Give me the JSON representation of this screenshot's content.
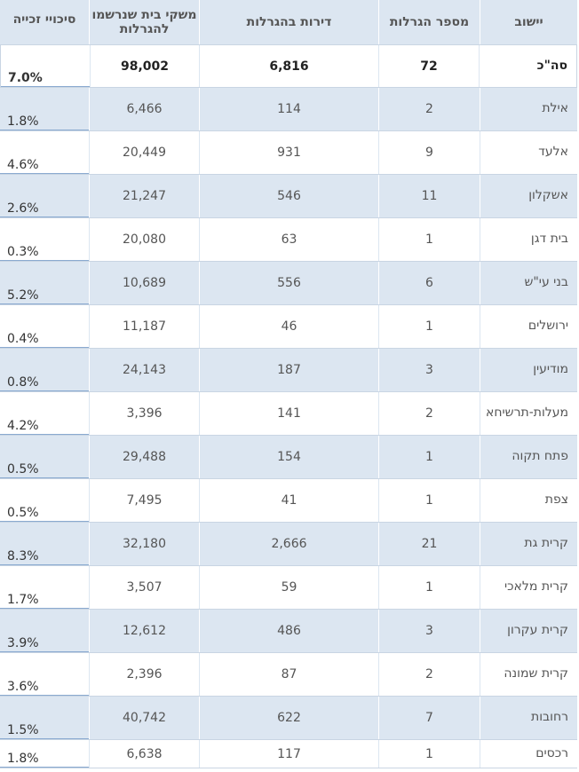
{
  "chart_data": {
    "type": "table",
    "columns": [
      "יישוב",
      "מספר הגרלות",
      "דירות בהגרלות",
      "משקי בית שנרשמו להגרלות",
      "סיכויי זכייה"
    ],
    "total": {
      "city": "סה\"כ",
      "lotteries": "72",
      "apartments": "6,816",
      "households": "98,002",
      "chance": "7.0%"
    },
    "rows": [
      {
        "city": "אילת",
        "lotteries": "2",
        "apartments": "114",
        "households": "6,466",
        "chance": "1.8%"
      },
      {
        "city": "אלעד",
        "lotteries": "9",
        "apartments": "931",
        "households": "20,449",
        "chance": "4.6%"
      },
      {
        "city": "אשקלון",
        "lotteries": "11",
        "apartments": "546",
        "households": "21,247",
        "chance": "2.6%"
      },
      {
        "city": "בית דגן",
        "lotteries": "1",
        "apartments": "63",
        "households": "20,080",
        "chance": "0.3%"
      },
      {
        "city": "בני עי\"ש",
        "lotteries": "6",
        "apartments": "556",
        "households": "10,689",
        "chance": "5.2%"
      },
      {
        "city": "ירושלים",
        "lotteries": "1",
        "apartments": "46",
        "households": "11,187",
        "chance": "0.4%"
      },
      {
        "city": "מודיעין",
        "lotteries": "3",
        "apartments": "187",
        "households": "24,143",
        "chance": "0.8%"
      },
      {
        "city": "מעלות-תרשיחא",
        "lotteries": "2",
        "apartments": "141",
        "households": "3,396",
        "chance": "4.2%"
      },
      {
        "city": "פתח תקוה",
        "lotteries": "1",
        "apartments": "154",
        "households": "29,488",
        "chance": "0.5%"
      },
      {
        "city": "צפת",
        "lotteries": "1",
        "apartments": "41",
        "households": "7,495",
        "chance": "0.5%"
      },
      {
        "city": "קרית גת",
        "lotteries": "21",
        "apartments": "2,666",
        "households": "32,180",
        "chance": "8.3%"
      },
      {
        "city": "קרית מלאכי",
        "lotteries": "1",
        "apartments": "59",
        "households": "3,507",
        "chance": "1.7%"
      },
      {
        "city": "קרית עקרון",
        "lotteries": "3",
        "apartments": "486",
        "households": "12,612",
        "chance": "3.9%"
      },
      {
        "city": "קרית שמונה",
        "lotteries": "2",
        "apartments": "87",
        "households": "2,396",
        "chance": "3.6%"
      },
      {
        "city": "רחובות",
        "lotteries": "7",
        "apartments": "622",
        "households": "40,742",
        "chance": "1.5%"
      },
      {
        "city": "רכסים",
        "lotteries": "1",
        "apartments": "117",
        "households": "6,638",
        "chance": "1.8%"
      }
    ]
  }
}
